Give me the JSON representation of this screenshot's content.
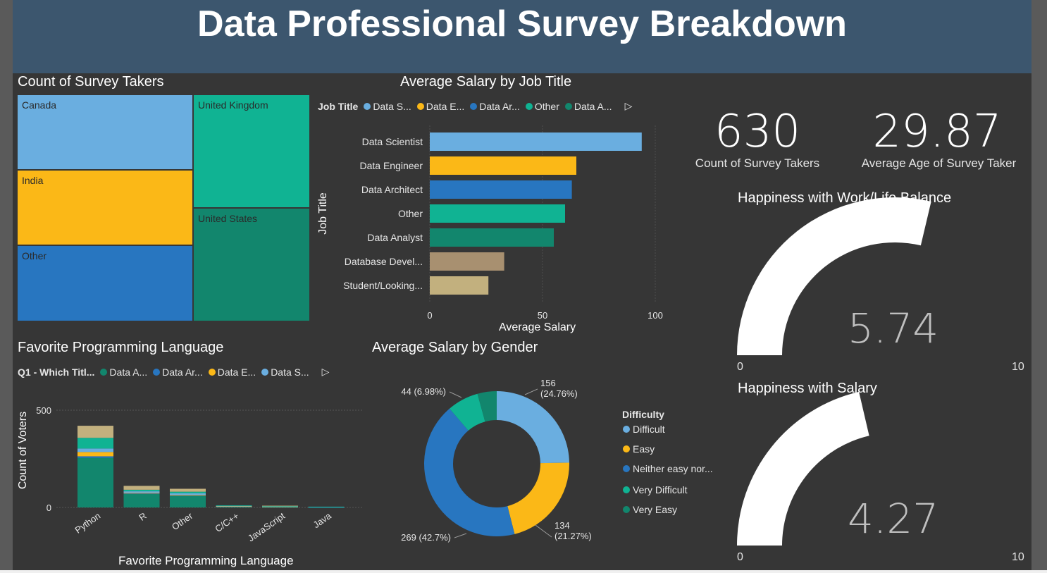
{
  "header": {
    "title": "Data Professional Survey Breakdown"
  },
  "treemap": {
    "title": "Count of Survey Takers",
    "tiles": [
      {
        "label": "Canada",
        "color": "#6aaee0"
      },
      {
        "label": "India",
        "color": "#fbb817"
      },
      {
        "label": "Other",
        "color": "#2876c0"
      },
      {
        "label": "United Kingdom",
        "color": "#10b393"
      },
      {
        "label": "United States",
        "color": "#12866d"
      }
    ]
  },
  "salary_by_job": {
    "title": "Average Salary by Job Title",
    "legend_title": "Job Title",
    "legend": [
      {
        "label": "Data S...",
        "color": "#6aaee0"
      },
      {
        "label": "Data E...",
        "color": "#fbb817"
      },
      {
        "label": "Data Ar...",
        "color": "#2876c0"
      },
      {
        "label": "Other",
        "color": "#10b393"
      },
      {
        "label": "Data A...",
        "color": "#12866d"
      }
    ],
    "legend_more": "▷",
    "ylabel": "Job Title",
    "xlabel": "Average Salary"
  },
  "kpis": [
    {
      "value": "630",
      "label": "Count of Survey Takers"
    },
    {
      "value": "29.87",
      "label": "Average Age of Survey Taker"
    }
  ],
  "gauges": [
    {
      "title": "Happiness with Work/Life Balance",
      "value": "5.74",
      "value_num": 5.74,
      "min": "0",
      "max": "10",
      "min_num": 0,
      "max_num": 10
    },
    {
      "title": "Happiness with Salary",
      "value": "4.27",
      "value_num": 4.27,
      "min": "0",
      "max": "10",
      "min_num": 0,
      "max_num": 10
    }
  ],
  "fav_lang": {
    "title": "Favorite Programming Language",
    "legend_title": "Q1 - Which Titl...",
    "legend": [
      {
        "label": "Data A...",
        "color": "#12866d"
      },
      {
        "label": "Data Ar...",
        "color": "#2876c0"
      },
      {
        "label": "Data E...",
        "color": "#fbb817"
      },
      {
        "label": "Data S...",
        "color": "#6aaee0"
      }
    ],
    "legend_more": "▷",
    "ylabel": "Count of Voters",
    "xlabel": "Favorite Programming Language"
  },
  "salary_by_gender": {
    "title": "Average Salary by Gender",
    "legend_title": "Difficulty",
    "legend": [
      {
        "label": "Difficult",
        "color": "#6aaee0"
      },
      {
        "label": "Easy",
        "color": "#fbb817"
      },
      {
        "label": "Neither easy nor...",
        "color": "#2876c0"
      },
      {
        "label": "Very Difficult",
        "color": "#10b393"
      },
      {
        "label": "Very Easy",
        "color": "#12866d"
      }
    ]
  },
  "chart_data": [
    {
      "type": "treemap",
      "title": "Count of Survey Takers",
      "categories": [
        "Canada",
        "India",
        "Other",
        "United Kingdom",
        "United States"
      ],
      "colors": [
        "#6aaee0",
        "#fbb817",
        "#2876c0",
        "#10b393",
        "#12866d"
      ]
    },
    {
      "type": "bar",
      "orientation": "horizontal",
      "title": "Average Salary by Job Title",
      "categories": [
        "Data Scientist",
        "Data Engineer",
        "Data Architect",
        "Other",
        "Data Analyst",
        "Database Devel...",
        "Student/Looking..."
      ],
      "values": [
        94,
        65,
        63,
        60,
        55,
        33,
        26
      ],
      "colors": [
        "#6aaee0",
        "#fbb817",
        "#2876c0",
        "#10b393",
        "#12866d",
        "#a89070",
        "#c2b07e"
      ],
      "xlabel": "Average Salary",
      "ylabel": "Job Title",
      "xlim": [
        0,
        100
      ],
      "xticks": [
        "0",
        "50",
        "100"
      ],
      "grid": true
    },
    {
      "type": "bar",
      "stacked": true,
      "title": "Favorite Programming Language",
      "categories": [
        "Python",
        "R",
        "Other",
        "C/C++",
        "JavaScript",
        "Java"
      ],
      "series": [
        {
          "name": "Data A...",
          "color": "#12866d",
          "values": [
            255,
            70,
            60,
            4,
            2,
            1
          ]
        },
        {
          "name": "Data Ar...",
          "color": "#2876c0",
          "values": [
            8,
            2,
            2,
            1,
            0,
            1
          ]
        },
        {
          "name": "Data E...",
          "color": "#fbb817",
          "values": [
            22,
            3,
            3,
            1,
            2,
            0
          ]
        },
        {
          "name": "Data S...",
          "color": "#6aaee0",
          "values": [
            18,
            8,
            8,
            2,
            1,
            1
          ]
        },
        {
          "color": "#10b393",
          "values": [
            55,
            8,
            8,
            3,
            2,
            1
          ]
        },
        {
          "color": "#c2b07e",
          "values": [
            62,
            20,
            15,
            0,
            2,
            0
          ]
        }
      ],
      "ylabel": "Count of Voters",
      "xlabel": "Favorite Programming Language",
      "ylim": [
        0,
        500
      ],
      "yticks": [
        "0",
        "500"
      ],
      "grid": true
    },
    {
      "type": "pie",
      "donut": true,
      "title": "Average Salary by Gender",
      "legend_title": "Difficulty",
      "categories": [
        "Difficult",
        "Easy",
        "Neither easy nor...",
        "Very Difficult",
        "Very Easy"
      ],
      "values": [
        156,
        134,
        269,
        44,
        27
      ],
      "colors": [
        "#6aaee0",
        "#fbb817",
        "#2876c0",
        "#10b393",
        "#12866d"
      ],
      "labels": [
        "156\n(24.76%)",
        "134\n(21.27%)",
        "269 (42.7%)",
        "44 (6.98%)",
        ""
      ]
    }
  ]
}
